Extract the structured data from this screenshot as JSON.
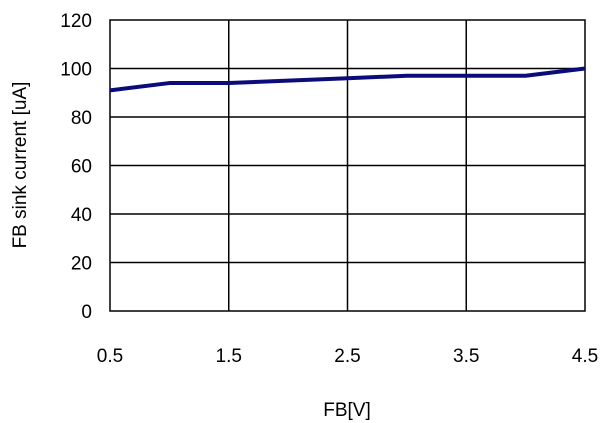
{
  "chart_data": {
    "type": "line",
    "xlabel": "FB[V]",
    "ylabel": "FB sink current [uA]",
    "xlim": [
      0.5,
      4.5
    ],
    "ylim": [
      0,
      120
    ],
    "x_ticks": [
      "0.5",
      "1.5",
      "2.5",
      "3.5",
      "4.5"
    ],
    "y_ticks": [
      "0",
      "20",
      "40",
      "60",
      "80",
      "100",
      "120"
    ],
    "grid": true,
    "series": [
      {
        "x": [
          0.5,
          1.0,
          1.5,
          2.0,
          2.5,
          3.0,
          3.5,
          4.0,
          4.5
        ],
        "y": [
          91,
          94,
          94,
          95,
          96,
          97,
          97,
          97,
          100
        ],
        "color": "#0b0b7a"
      }
    ]
  }
}
